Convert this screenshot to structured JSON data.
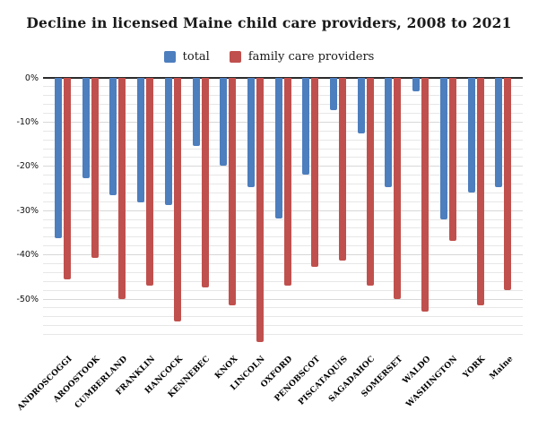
{
  "title": "Decline in licensed Maine child care providers, 2008 to 2021",
  "chart_data": {
    "type": "bar",
    "title": "Decline in licensed Maine child care providers, 2008 to 2021",
    "orientation": "vertical",
    "categories": [
      "ANDROSCOGGI",
      "AROOSTOOK",
      "CUMBERLAND",
      "FRANKLIN",
      "HANCOCK",
      "KENNEBEC",
      "KNOX",
      "LINCOLN",
      "OXFORD",
      "PENOBSCOT",
      "PISCATAQUIS",
      "SAGADAHOC",
      "SOMERSET",
      "WALDO",
      "WASHINGTON",
      "YORK",
      "Maine"
    ],
    "series": [
      {
        "name": "total",
        "color": "#4d7ebe",
        "values": [
          -36.2,
          -22.6,
          -26.6,
          -28.1,
          -28.8,
          -15.4,
          -19.8,
          -24.7,
          -31.8,
          -21.9,
          -7.3,
          -12.5,
          -24.6,
          -3.0,
          -31.9,
          -26.0,
          -24.6
        ]
      },
      {
        "name": "family care providers",
        "color": "#c0504d",
        "values": [
          -45.5,
          -40.7,
          -50.1,
          -46.9,
          -55.0,
          -47.4,
          -51.4,
          -59.7,
          -46.9,
          -42.7,
          -41.3,
          -46.9,
          -49.9,
          -52.9,
          -36.9,
          -51.4,
          -47.9
        ]
      }
    ],
    "y_unit": "%",
    "ylim": [
      -61.5,
      0
    ],
    "y_tick_labels": [
      "0%",
      "-10%",
      "-20%",
      "-30%",
      "-40%",
      "-50%"
    ],
    "y_major_step": 10,
    "y_minor_step": 2,
    "grid": "horizontal minor every 2%, major every 10%, zero line emphasized",
    "legend_position": "top-center",
    "xlabel": "",
    "ylabel": ""
  },
  "colors": {
    "background": "#ffffff",
    "zero_line": "#2b2b2b",
    "grid_minor": "#e7e7e7",
    "grid_major": "#d8d8d8",
    "text": "#1a1a1a"
  }
}
